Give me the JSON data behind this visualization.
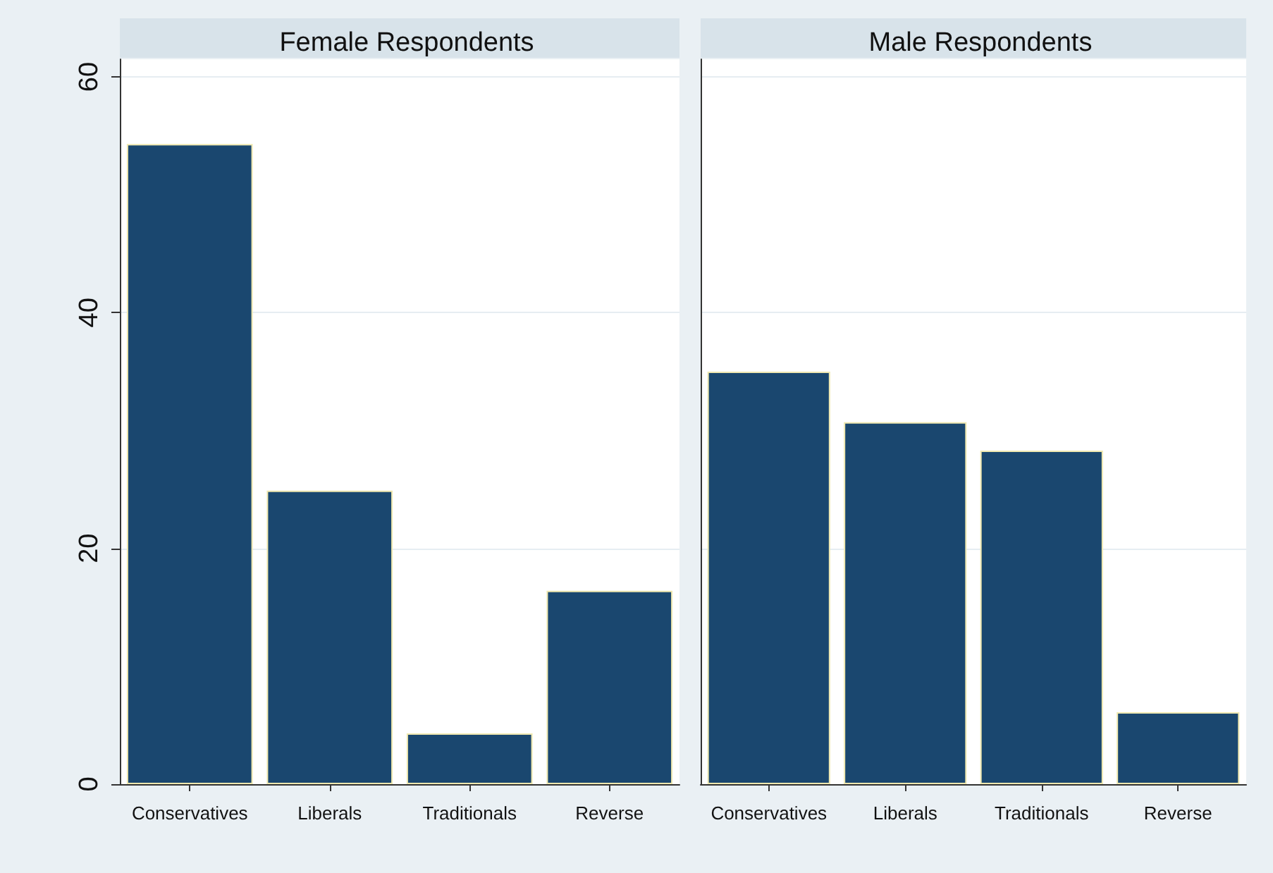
{
  "chart_data": [
    {
      "type": "bar",
      "title": "Female Respondents",
      "categories": [
        "Conservatives",
        "Liberals",
        "Traditionals",
        "Reverse"
      ],
      "values": [
        54.3,
        24.9,
        4.3,
        16.4
      ],
      "color": "#1a476f",
      "ylim": [
        0,
        61.5
      ],
      "yticks": [
        0,
        20,
        40,
        60
      ],
      "grid": "y"
    },
    {
      "type": "bar",
      "title": "Male Respondents",
      "categories": [
        "Conservatives",
        "Liberals",
        "Traditionals",
        "Reverse"
      ],
      "values": [
        35.0,
        30.7,
        28.3,
        6.1
      ],
      "color": "#1a476f",
      "ylim": [
        0,
        61.5
      ],
      "yticks": [
        0,
        20,
        40,
        60
      ],
      "grid": "y",
      "tick_labels": "x"
    }
  ]
}
